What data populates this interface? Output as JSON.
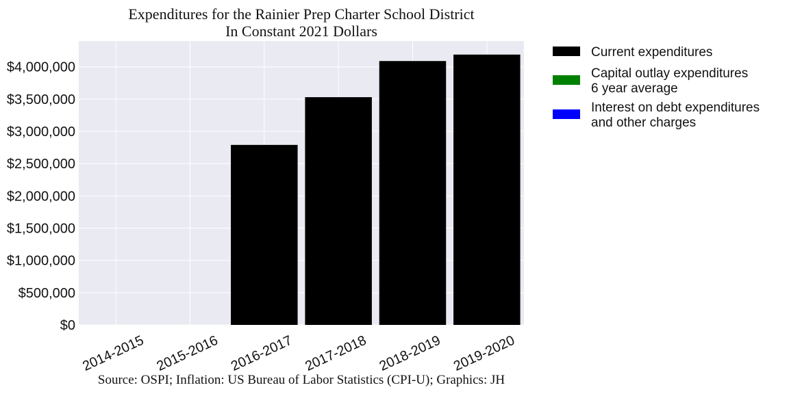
{
  "chart_data": {
    "type": "bar",
    "title_lines": [
      "Expenditures for the Rainier Prep Charter School District",
      "In Constant 2021 Dollars"
    ],
    "source": "Source: OSPI; Inflation: US Bureau of Labor Statistics (CPI-U); Graphics: JH",
    "categories": [
      "2014-2015",
      "2015-2016",
      "2016-2017",
      "2017-2018",
      "2018-2019",
      "2019-2020"
    ],
    "series": [
      {
        "name": "Current expenditures",
        "color": "#000000",
        "values": [
          0,
          0,
          2790000,
          3530000,
          4090000,
          4190000
        ]
      },
      {
        "name_lines": [
          "Capital outlay expenditures",
          "6 year average"
        ],
        "color": "#008000",
        "values": [
          0,
          0,
          0,
          0,
          0,
          0
        ]
      },
      {
        "name_lines": [
          "Interest on debt expenditures",
          "and other charges"
        ],
        "color": "#0000ff",
        "values": [
          0,
          0,
          0,
          0,
          0,
          0
        ]
      }
    ],
    "y_ticks": [
      0,
      500000,
      1000000,
      1500000,
      2000000,
      2500000,
      3000000,
      3500000,
      4000000
    ],
    "y_tick_labels": [
      "$0",
      "$500,000",
      "$1,000,000",
      "$1,500,000",
      "$2,000,000",
      "$2,500,000",
      "$3,000,000",
      "$3,500,000",
      "$4,000,000"
    ],
    "ylim": [
      0,
      4400000
    ],
    "grid": true,
    "legend_position": "outside-right",
    "plot_background": "#eaeaf2"
  }
}
